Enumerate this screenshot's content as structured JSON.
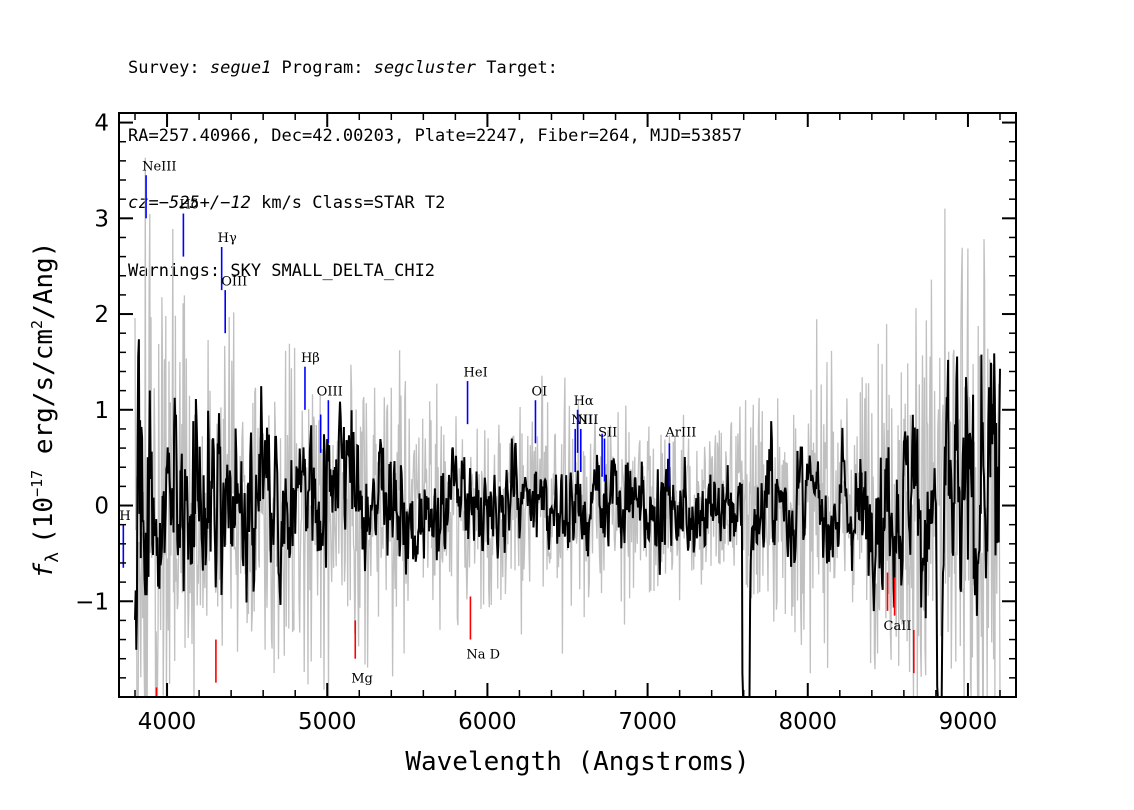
{
  "header": {
    "line1": {
      "p1": "Survey: ",
      "survey": "segue1",
      "p2": " Program: ",
      "program": "segcluster",
      "p3": " Target:"
    },
    "line2": "RA=257.40966, Dec=42.00203, Plate=2247, Fiber=264, MJD=53857",
    "line3": {
      "p1": "cz=",
      "cz": "−525+/−12",
      "p2": " km/s Class=STAR T2"
    },
    "line4": "Warnings: SKY SMALL_DELTA_CHI2"
  },
  "chart_data": {
    "type": "line",
    "title": "",
    "xlabel": "Wavelength (Angstroms)",
    "ylabel_parts": {
      "f": "f",
      "sub": "λ",
      "unit": "(10",
      "exp": "−17",
      "rest": " erg/s/cm",
      "exp2": "2",
      "tail": "/Ang)"
    },
    "xlim": [
      3700,
      9300
    ],
    "ylim": [
      -2.0,
      4.1
    ],
    "x_ticks": [
      4000,
      5000,
      6000,
      7000,
      8000,
      9000
    ],
    "y_ticks": [
      -1,
      0,
      1,
      2,
      3,
      4
    ],
    "x_tick_labels": [
      "4000",
      "5000",
      "6000",
      "7000",
      "8000",
      "9000"
    ],
    "y_tick_labels": [
      "−1",
      "0",
      "1",
      "2",
      "3",
      "4"
    ],
    "series": [
      {
        "kind": "error-envelope",
        "color": "#c0c0c0"
      },
      {
        "kind": "flux",
        "color": "#000000"
      }
    ],
    "emission_lines": [
      {
        "label": "H",
        "x": 3727,
        "y0": -0.65,
        "y1": -0.2,
        "label_y": -0.15
      },
      {
        "label": "NeIII",
        "x": 3869,
        "y0": 3.0,
        "y1": 3.45,
        "label_y": 3.5
      },
      {
        "label": "Hδ",
        "x": 4102,
        "y0": 2.6,
        "y1": 3.05,
        "label_y": 3.1
      },
      {
        "label": "Hγ",
        "x": 4341,
        "y0": 2.25,
        "y1": 2.7,
        "label_y": 2.75
      },
      {
        "label": "OIII",
        "x": 4363,
        "y0": 1.8,
        "y1": 2.25,
        "label_y": 2.3
      },
      {
        "label": "Hβ",
        "x": 4861,
        "y0": 1.0,
        "y1": 1.45,
        "label_y": 1.5
      },
      {
        "label": "OIII",
        "x": 4959,
        "y0": 0.55,
        "y1": 0.95,
        "label_y": 1.15
      },
      {
        "label": "",
        "x": 5007,
        "y0": 0.65,
        "y1": 1.1,
        "label_y": 1.15
      },
      {
        "label": "HeI",
        "x": 5876,
        "y0": 0.85,
        "y1": 1.3,
        "label_y": 1.35
      },
      {
        "label": "OI",
        "x": 6300,
        "y0": 0.65,
        "y1": 1.1,
        "label_y": 1.15
      },
      {
        "label": "NII",
        "x": 6548,
        "y0": 0.35,
        "y1": 0.8,
        "label_y": 0.85
      },
      {
        "label": "Hα",
        "x": 6563,
        "y0": 0.55,
        "y1": 1.0,
        "label_y": 1.05
      },
      {
        "label": "NII",
        "x": 6583,
        "y0": 0.35,
        "y1": 0.8,
        "label_y": 0.85
      },
      {
        "label": "SII",
        "x": 6716,
        "y0": 0.3,
        "y1": 0.75,
        "label_y": 0.72
      },
      {
        "label": "",
        "x": 6731,
        "y0": 0.25,
        "y1": 0.7,
        "label_y": 0.72
      },
      {
        "label": "ArIII",
        "x": 7136,
        "y0": 0.2,
        "y1": 0.65,
        "label_y": 0.72
      }
    ],
    "absorption_lines": [
      {
        "label": "",
        "x": 3934,
        "y0": -2.0,
        "y1": -1.9,
        "label_y": -1.9
      },
      {
        "label": "",
        "x": 4305,
        "y0": -1.85,
        "y1": -1.4,
        "label_y": -1.4
      },
      {
        "label": "Mg",
        "x": 5175,
        "y0": -1.6,
        "y1": -1.2,
        "label_y": -1.85
      },
      {
        "label": "Na D",
        "x": 5894,
        "y0": -1.4,
        "y1": -0.95,
        "label_y": -1.6
      },
      {
        "label": "CaII",
        "x": 8498,
        "y0": -1.1,
        "y1": -0.7,
        "label_y": -1.3
      },
      {
        "label": "",
        "x": 8542,
        "y0": -1.15,
        "y1": -0.75,
        "label_y": -1.3
      },
      {
        "label": "",
        "x": 8662,
        "y0": -1.75,
        "y1": -1.3,
        "label_y": -1.3
      }
    ],
    "emission_color": "#0000ff",
    "absorption_color": "#ff0000"
  }
}
